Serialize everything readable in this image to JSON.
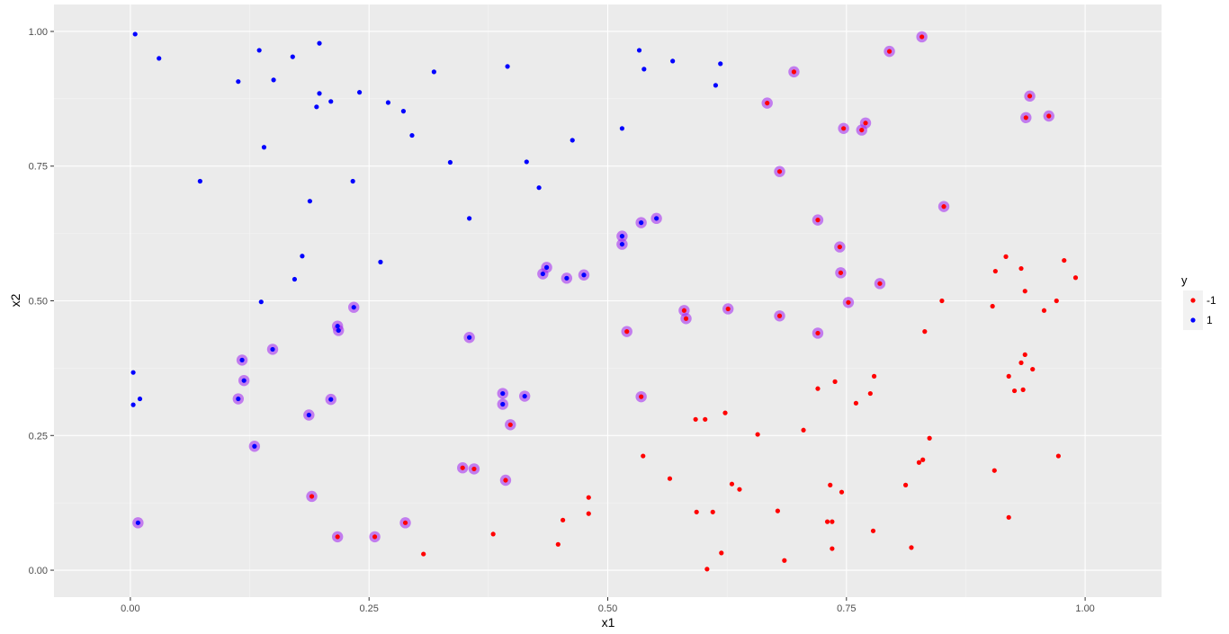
{
  "chart_data": {
    "type": "scatter",
    "title": "",
    "xlabel": "x1",
    "ylabel": "x2",
    "xlim": [
      -0.08,
      1.08
    ],
    "ylim": [
      -0.05,
      1.05
    ],
    "x_ticks": [
      0.0,
      0.25,
      0.5,
      0.75,
      1.0
    ],
    "x_tick_labels": [
      "0.00",
      "0.25",
      "0.50",
      "0.75",
      "1.00"
    ],
    "y_ticks": [
      0.0,
      0.25,
      0.5,
      0.75,
      1.0
    ],
    "y_tick_labels": [
      "0.00",
      "0.25",
      "0.50",
      "0.75",
      "1.00"
    ],
    "grid": true,
    "legend": {
      "title": "y",
      "position": "right",
      "entries": [
        {
          "label": "-1",
          "color": "#ff0000"
        },
        {
          "label": "1",
          "color": "#0000ff"
        }
      ]
    },
    "colors": {
      "neg": "#ff0000",
      "pos": "#0000ff",
      "highlight": "#a020f0",
      "panel": "#ebebeb",
      "grid_major": "#ffffff",
      "grid_minor": "#f5f5f5"
    },
    "series": [
      {
        "label": "1",
        "color": "#0000ff",
        "points": [
          [
            0.005,
            0.995
          ],
          [
            0.03,
            0.95
          ],
          [
            0.113,
            0.907
          ],
          [
            0.135,
            0.965
          ],
          [
            0.15,
            0.91
          ],
          [
            0.17,
            0.953
          ],
          [
            0.198,
            0.978
          ],
          [
            0.198,
            0.885
          ],
          [
            0.195,
            0.86
          ],
          [
            0.21,
            0.87
          ],
          [
            0.24,
            0.887
          ],
          [
            0.27,
            0.868
          ],
          [
            0.286,
            0.852
          ],
          [
            0.295,
            0.807
          ],
          [
            0.318,
            0.925
          ],
          [
            0.395,
            0.935
          ],
          [
            0.14,
            0.785
          ],
          [
            0.073,
            0.722
          ],
          [
            0.188,
            0.685
          ],
          [
            0.233,
            0.722
          ],
          [
            0.335,
            0.757
          ],
          [
            0.355,
            0.653
          ],
          [
            0.415,
            0.758
          ],
          [
            0.428,
            0.71
          ],
          [
            0.463,
            0.798
          ],
          [
            0.533,
            0.965
          ],
          [
            0.538,
            0.93
          ],
          [
            0.568,
            0.945
          ],
          [
            0.613,
            0.9
          ],
          [
            0.618,
            0.94
          ],
          [
            0.515,
            0.82
          ],
          [
            0.18,
            0.583
          ],
          [
            0.172,
            0.54
          ],
          [
            0.262,
            0.572
          ],
          [
            0.137,
            0.498
          ],
          [
            0.003,
            0.367
          ],
          [
            0.01,
            0.318
          ],
          [
            0.003,
            0.307
          ]
        ]
      },
      {
        "label": "-1",
        "color": "#ff0000",
        "points": [
          [
            0.307,
            0.03
          ],
          [
            0.38,
            0.067
          ],
          [
            0.448,
            0.048
          ],
          [
            0.453,
            0.093
          ],
          [
            0.48,
            0.135
          ],
          [
            0.48,
            0.105
          ],
          [
            0.537,
            0.212
          ],
          [
            0.565,
            0.17
          ],
          [
            0.592,
            0.28
          ],
          [
            0.602,
            0.28
          ],
          [
            0.593,
            0.108
          ],
          [
            0.61,
            0.108
          ],
          [
            0.619,
            0.032
          ],
          [
            0.604,
            0.002
          ],
          [
            0.623,
            0.292
          ],
          [
            0.63,
            0.16
          ],
          [
            0.638,
            0.15
          ],
          [
            0.657,
            0.252
          ],
          [
            0.678,
            0.11
          ],
          [
            0.685,
            0.018
          ],
          [
            0.705,
            0.26
          ],
          [
            0.72,
            0.337
          ],
          [
            0.73,
            0.09
          ],
          [
            0.735,
            0.09
          ],
          [
            0.733,
            0.158
          ],
          [
            0.735,
            0.04
          ],
          [
            0.738,
            0.35
          ],
          [
            0.745,
            0.145
          ],
          [
            0.76,
            0.31
          ],
          [
            0.775,
            0.328
          ],
          [
            0.779,
            0.36
          ],
          [
            0.778,
            0.073
          ],
          [
            0.812,
            0.158
          ],
          [
            0.818,
            0.042
          ],
          [
            0.826,
            0.2
          ],
          [
            0.83,
            0.205
          ],
          [
            0.832,
            0.443
          ],
          [
            0.837,
            0.245
          ],
          [
            0.85,
            0.5
          ],
          [
            0.903,
            0.49
          ],
          [
            0.906,
            0.555
          ],
          [
            0.905,
            0.185
          ],
          [
            0.917,
            0.582
          ],
          [
            0.92,
            0.098
          ],
          [
            0.92,
            0.36
          ],
          [
            0.926,
            0.333
          ],
          [
            0.933,
            0.56
          ],
          [
            0.933,
            0.385
          ],
          [
            0.935,
            0.335
          ],
          [
            0.937,
            0.4
          ],
          [
            0.937,
            0.518
          ],
          [
            0.945,
            0.373
          ],
          [
            0.957,
            0.482
          ],
          [
            0.97,
            0.5
          ],
          [
            0.972,
            0.212
          ],
          [
            0.978,
            0.575
          ],
          [
            0.99,
            0.543
          ]
        ]
      }
    ],
    "highlighted_points": [
      {
        "x": 0.008,
        "y": 0.088,
        "label": "1"
      },
      {
        "x": 0.113,
        "y": 0.318,
        "label": "1"
      },
      {
        "x": 0.117,
        "y": 0.39,
        "label": "1"
      },
      {
        "x": 0.119,
        "y": 0.352,
        "label": "1"
      },
      {
        "x": 0.13,
        "y": 0.23,
        "label": "1"
      },
      {
        "x": 0.149,
        "y": 0.41,
        "label": "1"
      },
      {
        "x": 0.187,
        "y": 0.288,
        "label": "1"
      },
      {
        "x": 0.21,
        "y": 0.317,
        "label": "1"
      },
      {
        "x": 0.217,
        "y": 0.453,
        "label": "1"
      },
      {
        "x": 0.218,
        "y": 0.445,
        "label": "1"
      },
      {
        "x": 0.234,
        "y": 0.488,
        "label": "1"
      },
      {
        "x": 0.355,
        "y": 0.432,
        "label": "1"
      },
      {
        "x": 0.39,
        "y": 0.328,
        "label": "1"
      },
      {
        "x": 0.39,
        "y": 0.308,
        "label": "1"
      },
      {
        "x": 0.413,
        "y": 0.323,
        "label": "1"
      },
      {
        "x": 0.432,
        "y": 0.55,
        "label": "1"
      },
      {
        "x": 0.436,
        "y": 0.562,
        "label": "1"
      },
      {
        "x": 0.457,
        "y": 0.542,
        "label": "1"
      },
      {
        "x": 0.475,
        "y": 0.548,
        "label": "1"
      },
      {
        "x": 0.515,
        "y": 0.62,
        "label": "1"
      },
      {
        "x": 0.515,
        "y": 0.605,
        "label": "1"
      },
      {
        "x": 0.535,
        "y": 0.645,
        "label": "1"
      },
      {
        "x": 0.551,
        "y": 0.653,
        "label": "1"
      },
      {
        "x": 0.19,
        "y": 0.137,
        "label": "-1"
      },
      {
        "x": 0.217,
        "y": 0.062,
        "label": "-1"
      },
      {
        "x": 0.256,
        "y": 0.062,
        "label": "-1"
      },
      {
        "x": 0.288,
        "y": 0.088,
        "label": "-1"
      },
      {
        "x": 0.348,
        "y": 0.19,
        "label": "-1"
      },
      {
        "x": 0.36,
        "y": 0.188,
        "label": "-1"
      },
      {
        "x": 0.393,
        "y": 0.167,
        "label": "-1"
      },
      {
        "x": 0.398,
        "y": 0.27,
        "label": "-1"
      },
      {
        "x": 0.52,
        "y": 0.443,
        "label": "-1"
      },
      {
        "x": 0.535,
        "y": 0.322,
        "label": "-1"
      },
      {
        "x": 0.58,
        "y": 0.482,
        "label": "-1"
      },
      {
        "x": 0.582,
        "y": 0.467,
        "label": "-1"
      },
      {
        "x": 0.626,
        "y": 0.485,
        "label": "-1"
      },
      {
        "x": 0.667,
        "y": 0.867,
        "label": "-1"
      },
      {
        "x": 0.68,
        "y": 0.74,
        "label": "-1"
      },
      {
        "x": 0.68,
        "y": 0.472,
        "label": "-1"
      },
      {
        "x": 0.695,
        "y": 0.925,
        "label": "-1"
      },
      {
        "x": 0.72,
        "y": 0.65,
        "label": "-1"
      },
      {
        "x": 0.72,
        "y": 0.44,
        "label": "-1"
      },
      {
        "x": 0.743,
        "y": 0.6,
        "label": "-1"
      },
      {
        "x": 0.744,
        "y": 0.552,
        "label": "-1"
      },
      {
        "x": 0.747,
        "y": 0.82,
        "label": "-1"
      },
      {
        "x": 0.752,
        "y": 0.497,
        "label": "-1"
      },
      {
        "x": 0.766,
        "y": 0.817,
        "label": "-1"
      },
      {
        "x": 0.77,
        "y": 0.83,
        "label": "-1"
      },
      {
        "x": 0.785,
        "y": 0.532,
        "label": "-1"
      },
      {
        "x": 0.795,
        "y": 0.963,
        "label": "-1"
      },
      {
        "x": 0.829,
        "y": 0.99,
        "label": "-1"
      },
      {
        "x": 0.852,
        "y": 0.675,
        "label": "-1"
      },
      {
        "x": 0.938,
        "y": 0.84,
        "label": "-1"
      },
      {
        "x": 0.942,
        "y": 0.88,
        "label": "-1"
      },
      {
        "x": 0.962,
        "y": 0.843,
        "label": "-1"
      }
    ]
  }
}
